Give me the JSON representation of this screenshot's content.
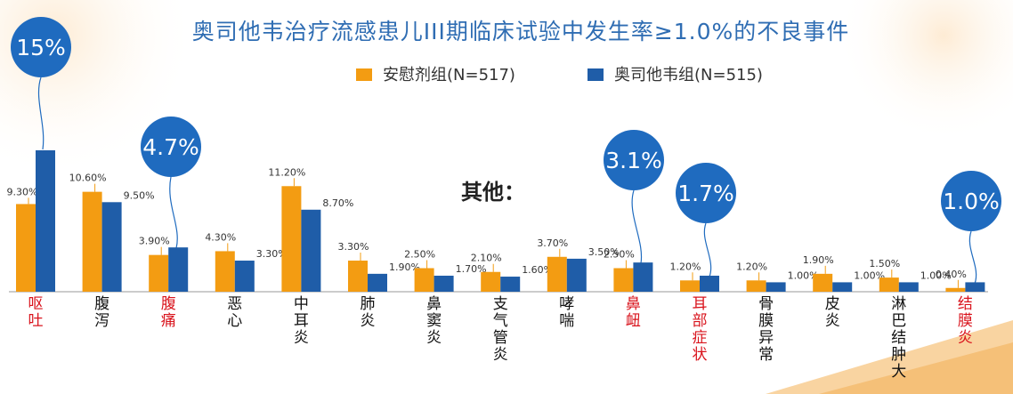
{
  "title": "奥司他韦治疗流感患儿III期临床试验中发生率≥1.0%的不良事件",
  "other_label": "其他：",
  "legend": {
    "placebo": "安慰剂组(N=517)",
    "oseltamivir": "奥司他韦组(N=515)"
  },
  "colors": {
    "placebo": "#f39c12",
    "oseltamivir": "#1f5da8",
    "highlight_category": "#d9141d",
    "bubble": "#1f6bbf"
  },
  "bubbles": {
    "b0": "15%",
    "b1": "4.7%",
    "b2": "3.1%",
    "b3": "1.7%",
    "b4": "1.0%"
  },
  "chart_data": {
    "type": "bar",
    "title": "奥司他韦治疗流感患儿III期临床试验中发生率≥1.0%的不良事件",
    "ylim": [
      0,
      16
    ],
    "grid": false,
    "legend_position": "top",
    "categories": [
      "呕吐",
      "腹泻",
      "腹痛",
      "恶心",
      "中耳炎",
      "肺炎",
      "鼻窦炎",
      "支气管炎",
      "哮喘",
      "鼻衄",
      "耳部症状",
      "骨膜异常",
      "皮炎",
      "淋巴结肿大",
      "结膜炎"
    ],
    "highlighted_categories": [
      "呕吐",
      "腹痛",
      "鼻衄",
      "耳部症状",
      "结膜炎"
    ],
    "series": [
      {
        "name": "安慰剂组(N=517)",
        "values": [
          9.3,
          10.6,
          3.9,
          4.3,
          11.2,
          3.3,
          2.5,
          2.1,
          3.7,
          2.5,
          1.2,
          1.2,
          1.9,
          1.5,
          0.4
        ],
        "labels": [
          "9.30%",
          "10.60%",
          "3.90%",
          "4.30%",
          "11.20%",
          "3.30%",
          "2.50%",
          "2.10%",
          "3.70%",
          "2.50%",
          "1.20%",
          "1.20%",
          "1.90%",
          "1.50%",
          "0.40%"
        ]
      },
      {
        "name": "奥司他韦组(N=515)",
        "values": [
          15,
          9.5,
          4.7,
          3.3,
          8.7,
          1.9,
          1.7,
          1.6,
          3.5,
          3.1,
          1.7,
          1.0,
          1.0,
          1.0,
          1.0
        ],
        "labels": [
          "",
          "9.50%",
          "",
          "3.30%",
          "8.70%",
          "1.90%",
          "1.70%",
          "1.60%",
          "3.50%",
          "",
          "",
          "1.00%",
          "1.00%",
          "1.00%",
          ""
        ]
      }
    ]
  }
}
